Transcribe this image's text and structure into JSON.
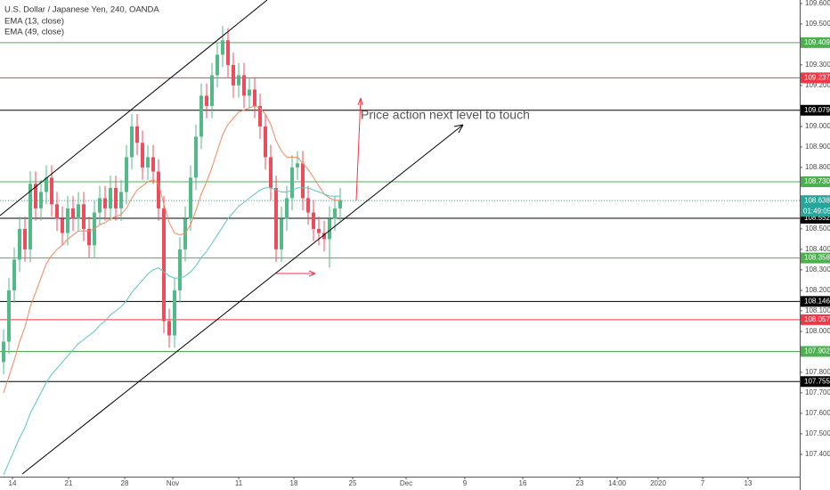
{
  "chart_data": {
    "type": "candlestick",
    "title": "U.S. Dollar / Japanese Yen, 240, OANDA",
    "up_color": "#53b987",
    "down_color": "#eb4d5c",
    "open": [
      107.85,
      107.95,
      108.2,
      108.35,
      108.5,
      108.4,
      108.72,
      108.6,
      108.68,
      108.75,
      108.62,
      108.55,
      108.48,
      108.6,
      108.55,
      108.62,
      108.5,
      108.42,
      108.58,
      108.65,
      108.6,
      108.7,
      108.6,
      108.68,
      108.85,
      109.0,
      108.92,
      108.8,
      108.85,
      108.78,
      108.6,
      108.05,
      107.98,
      108.2,
      108.4,
      108.55,
      108.75,
      108.95,
      109.15,
      109.1,
      109.25,
      109.35,
      109.42,
      109.3,
      109.2,
      109.25,
      109.15,
      109.18,
      109.1,
      109.0,
      108.85,
      108.7,
      108.4,
      108.55,
      108.65,
      108.8,
      108.82,
      108.65,
      108.58,
      108.5,
      108.48,
      108.45,
      108.55,
      108.6
    ],
    "high": [
      108.01,
      108.26,
      108.41,
      108.56,
      108.56,
      108.78,
      108.78,
      108.74,
      108.81,
      108.81,
      108.68,
      108.61,
      108.66,
      108.66,
      108.68,
      108.68,
      108.56,
      108.64,
      108.71,
      108.71,
      108.76,
      108.76,
      108.74,
      108.91,
      109.06,
      109.06,
      108.98,
      108.91,
      108.91,
      108.84,
      108.66,
      108.11,
      108.26,
      108.46,
      108.61,
      108.81,
      109.01,
      109.21,
      109.21,
      109.31,
      109.41,
      109.49,
      109.48,
      109.36,
      109.31,
      109.31,
      109.24,
      109.24,
      109.16,
      109.06,
      108.91,
      108.76,
      108.61,
      108.71,
      108.86,
      108.88,
      108.88,
      108.71,
      108.64,
      108.56,
      108.54,
      108.61,
      108.66,
      108.7
    ],
    "low": [
      107.79,
      107.89,
      108.14,
      108.29,
      108.34,
      108.34,
      108.54,
      108.54,
      108.62,
      108.56,
      108.49,
      108.42,
      108.42,
      108.49,
      108.49,
      108.44,
      108.36,
      108.36,
      108.52,
      108.54,
      108.54,
      108.54,
      108.54,
      108.62,
      108.79,
      108.86,
      108.74,
      108.74,
      108.72,
      108.54,
      107.99,
      107.92,
      107.92,
      108.14,
      108.34,
      108.49,
      108.69,
      108.89,
      109.04,
      109.04,
      109.19,
      109.29,
      109.24,
      109.14,
      109.14,
      109.09,
      109.09,
      109.04,
      108.94,
      108.79,
      108.64,
      108.34,
      108.34,
      108.49,
      108.59,
      108.74,
      108.59,
      108.52,
      108.44,
      108.42,
      108.39,
      108.31,
      108.49,
      108.54
    ],
    "close": [
      107.95,
      108.2,
      108.35,
      108.5,
      108.4,
      108.72,
      108.6,
      108.68,
      108.75,
      108.62,
      108.55,
      108.48,
      108.6,
      108.55,
      108.62,
      108.5,
      108.42,
      108.58,
      108.65,
      108.6,
      108.7,
      108.6,
      108.68,
      108.85,
      109.0,
      108.92,
      108.8,
      108.85,
      108.78,
      108.6,
      108.05,
      107.98,
      108.2,
      108.4,
      108.55,
      108.75,
      108.95,
      109.15,
      109.1,
      109.25,
      109.35,
      109.42,
      109.3,
      109.2,
      109.25,
      109.15,
      109.18,
      109.1,
      109.0,
      108.85,
      108.7,
      108.4,
      108.55,
      108.65,
      108.8,
      108.82,
      108.65,
      108.58,
      108.5,
      108.48,
      108.45,
      108.55,
      108.6,
      108.64
    ],
    "series": [
      {
        "name": "EMA (13, close)",
        "color": "#f4865c",
        "values": [
          107.7,
          107.78,
          107.86,
          107.95,
          108.02,
          108.12,
          108.19,
          108.26,
          108.33,
          108.37,
          108.4,
          108.42,
          108.45,
          108.47,
          108.49,
          108.49,
          108.49,
          108.5,
          108.52,
          108.53,
          108.55,
          108.56,
          108.57,
          108.6,
          108.65,
          108.69,
          108.71,
          108.73,
          108.74,
          108.72,
          108.62,
          108.53,
          108.48,
          108.47,
          108.48,
          108.52,
          108.59,
          108.67,
          108.73,
          108.8,
          108.88,
          108.96,
          109.01,
          109.04,
          109.07,
          109.08,
          109.09,
          109.1,
          109.09,
          109.06,
          109.01,
          108.93,
          108.88,
          108.85,
          108.85,
          108.85,
          108.82,
          108.79,
          108.75,
          108.71,
          108.67,
          108.65,
          108.64,
          108.64
        ]
      },
      {
        "name": "EMA (49, close)",
        "color": "#59c9bd",
        "values": [
          107.3,
          107.36,
          107.42,
          107.48,
          107.53,
          107.6,
          107.65,
          107.7,
          107.75,
          107.79,
          107.82,
          107.85,
          107.88,
          107.91,
          107.94,
          107.96,
          107.98,
          108.0,
          108.03,
          108.05,
          108.08,
          108.1,
          108.12,
          108.15,
          108.19,
          108.22,
          108.25,
          108.28,
          108.3,
          108.31,
          108.29,
          108.27,
          108.26,
          108.26,
          108.27,
          108.29,
          108.32,
          108.36,
          108.39,
          108.43,
          108.47,
          108.51,
          108.55,
          108.58,
          108.61,
          108.63,
          108.65,
          108.67,
          108.69,
          108.7,
          108.7,
          108.69,
          108.68,
          108.68,
          108.69,
          108.7,
          108.7,
          108.7,
          108.69,
          108.68,
          108.67,
          108.66,
          108.66,
          108.66
        ]
      }
    ],
    "ylim": [
      107.291,
      109.617
    ],
    "yticks": [
      {
        "value": 109.6,
        "label": "109.600"
      },
      {
        "value": 109.5,
        "label": "109.500"
      },
      {
        "value": 109.3,
        "label": "109.300"
      },
      {
        "value": 109.2,
        "label": "109.200"
      },
      {
        "value": 109.0,
        "label": "109.000"
      },
      {
        "value": 108.9,
        "label": "108.900"
      },
      {
        "value": 108.8,
        "label": "108.800"
      },
      {
        "value": 108.5,
        "label": "108.500"
      },
      {
        "value": 108.4,
        "label": "108.400"
      },
      {
        "value": 108.3,
        "label": "108.300"
      },
      {
        "value": 108.2,
        "label": "108.200"
      },
      {
        "value": 108.1,
        "label": "108.100"
      },
      {
        "value": 108.0,
        "label": "108.000"
      },
      {
        "value": 107.8,
        "label": "107.800"
      },
      {
        "value": 107.7,
        "label": "107.700"
      },
      {
        "value": 107.6,
        "label": "107.600"
      },
      {
        "value": 107.5,
        "label": "107.500"
      },
      {
        "value": 107.4,
        "label": "107.400"
      }
    ],
    "x_labels": [
      "14",
      "21",
      "28",
      "Nov",
      "11",
      "18",
      "25",
      "Dec",
      "9",
      "16",
      "23",
      "14:00",
      "2020",
      "7",
      "13"
    ],
    "levels": [
      {
        "value": 109.409,
        "label": "109.409",
        "color": "#4caf50"
      },
      {
        "value": 109.237,
        "label": "109.237",
        "color": "#f23645"
      },
      {
        "value": 109.079,
        "label": "109.079",
        "color": "#000000"
      },
      {
        "value": 108.73,
        "label": "108.730",
        "color": "#4caf50"
      },
      {
        "value": 108.552,
        "label": "108.552",
        "color": "#000000"
      },
      {
        "value": 108.358,
        "label": "108.358",
        "color": "#4caf50"
      },
      {
        "value": 108.146,
        "label": "108.146",
        "color": "#000000"
      },
      {
        "value": 108.057,
        "label": "108.057",
        "color": "#f23645"
      },
      {
        "value": 107.902,
        "label": "107.902",
        "color": "#4caf50"
      },
      {
        "value": 107.755,
        "label": "107.755",
        "color": "#000000"
      }
    ],
    "last_price": 108.638,
    "last_price_color": "#26a69a",
    "countdown": "01:49:05",
    "annotation": "Price action next level to touch"
  }
}
